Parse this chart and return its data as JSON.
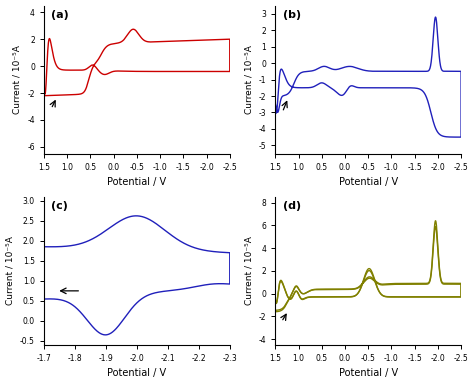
{
  "subplot_a": {
    "color": "#cc0000",
    "xlim": [
      1.5,
      -2.5
    ],
    "ylim": [
      -6.5,
      4.5
    ],
    "yticks": [
      -6,
      -4,
      -2,
      0,
      2,
      4
    ],
    "xticks": [
      1.5,
      1.0,
      0.5,
      0.0,
      -0.5,
      -1.0,
      -1.5,
      -2.0,
      -2.5
    ],
    "ylabel": "Current / 10⁻⁵A",
    "xlabel": "Potential / V",
    "label": "(a)"
  },
  "subplot_b": {
    "color": "#2020bb",
    "xlim": [
      1.5,
      -2.5
    ],
    "ylim": [
      -5.5,
      3.5
    ],
    "yticks": [
      -5,
      -4,
      -3,
      -2,
      -1,
      0,
      1,
      2,
      3
    ],
    "xticks": [
      1.5,
      1.0,
      0.5,
      0.0,
      -0.5,
      -1.0,
      -1.5,
      -2.0,
      -2.5
    ],
    "ylabel": "Current / 10⁻⁵A",
    "xlabel": "Potential / V",
    "label": "(b)"
  },
  "subplot_c": {
    "color": "#2020bb",
    "xlim": [
      -1.7,
      -2.3
    ],
    "ylim": [
      -0.6,
      3.1
    ],
    "yticks": [
      -0.5,
      0.0,
      0.5,
      1.0,
      1.5,
      2.0,
      2.5,
      3.0
    ],
    "xticks": [
      -1.7,
      -1.8,
      -1.9,
      -2.0,
      -2.1,
      -2.2,
      -2.3
    ],
    "ylabel": "Current / 10⁻⁵A",
    "xlabel": "Potential / V",
    "label": "(c)"
  },
  "subplot_d": {
    "color": "#808000",
    "xlim": [
      1.5,
      -2.5
    ],
    "ylim": [
      -4.5,
      8.5
    ],
    "yticks": [
      -4,
      -2,
      0,
      2,
      4,
      6,
      8
    ],
    "xticks": [
      1.5,
      1.0,
      0.5,
      0.0,
      -0.5,
      -1.0,
      -1.5,
      -2.0,
      -2.5
    ],
    "ylabel": "Current / 10⁻⁵A",
    "xlabel": "Potential / V",
    "label": "(d)"
  }
}
